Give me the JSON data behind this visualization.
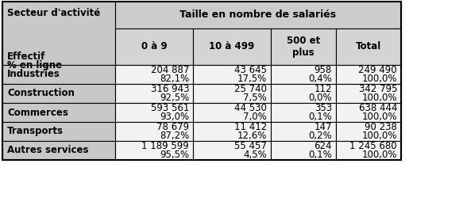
{
  "header_span": "Taille en nombre de salariés",
  "col_headers": [
    "0 à 9",
    "10 à 499",
    "500 et\nplus",
    "Total"
  ],
  "row_labels": [
    "Industries",
    "Construction",
    "Commerces",
    "Transports",
    "Autres services"
  ],
  "values": [
    [
      "204 887",
      "43 645",
      "958",
      "249 490"
    ],
    [
      "82,1%",
      "17,5%",
      "0,4%",
      "100,0%"
    ],
    [
      "316 943",
      "25 740",
      "112",
      "342 795"
    ],
    [
      "92,5%",
      "7,5%",
      "0,0%",
      "100,0%"
    ],
    [
      "593 561",
      "44 530",
      "353",
      "638 444"
    ],
    [
      "93,0%",
      "7,0%",
      "0,1%",
      "100,0%"
    ],
    [
      "78 679",
      "11 412",
      "147",
      "90 238"
    ],
    [
      "87,2%",
      "12,6%",
      "0,2%",
      "100,0%"
    ],
    [
      "1 189 599",
      "55 457",
      "624",
      "1 245 680"
    ],
    [
      "95,5%",
      "4,5%",
      "0,1%",
      "100,0%"
    ]
  ],
  "bg_left_header": "#c8c8c8",
  "bg_top_header": "#cccccc",
  "bg_col_header": "#d4d4d4",
  "bg_row_label": "#c8c8c8",
  "bg_data_odd": "#f2f2f2",
  "bg_data_even": "#f2f2f2",
  "border_color": "#000000",
  "fontsize": 8.5,
  "figw": 5.88,
  "figh": 2.69,
  "dpi": 100
}
